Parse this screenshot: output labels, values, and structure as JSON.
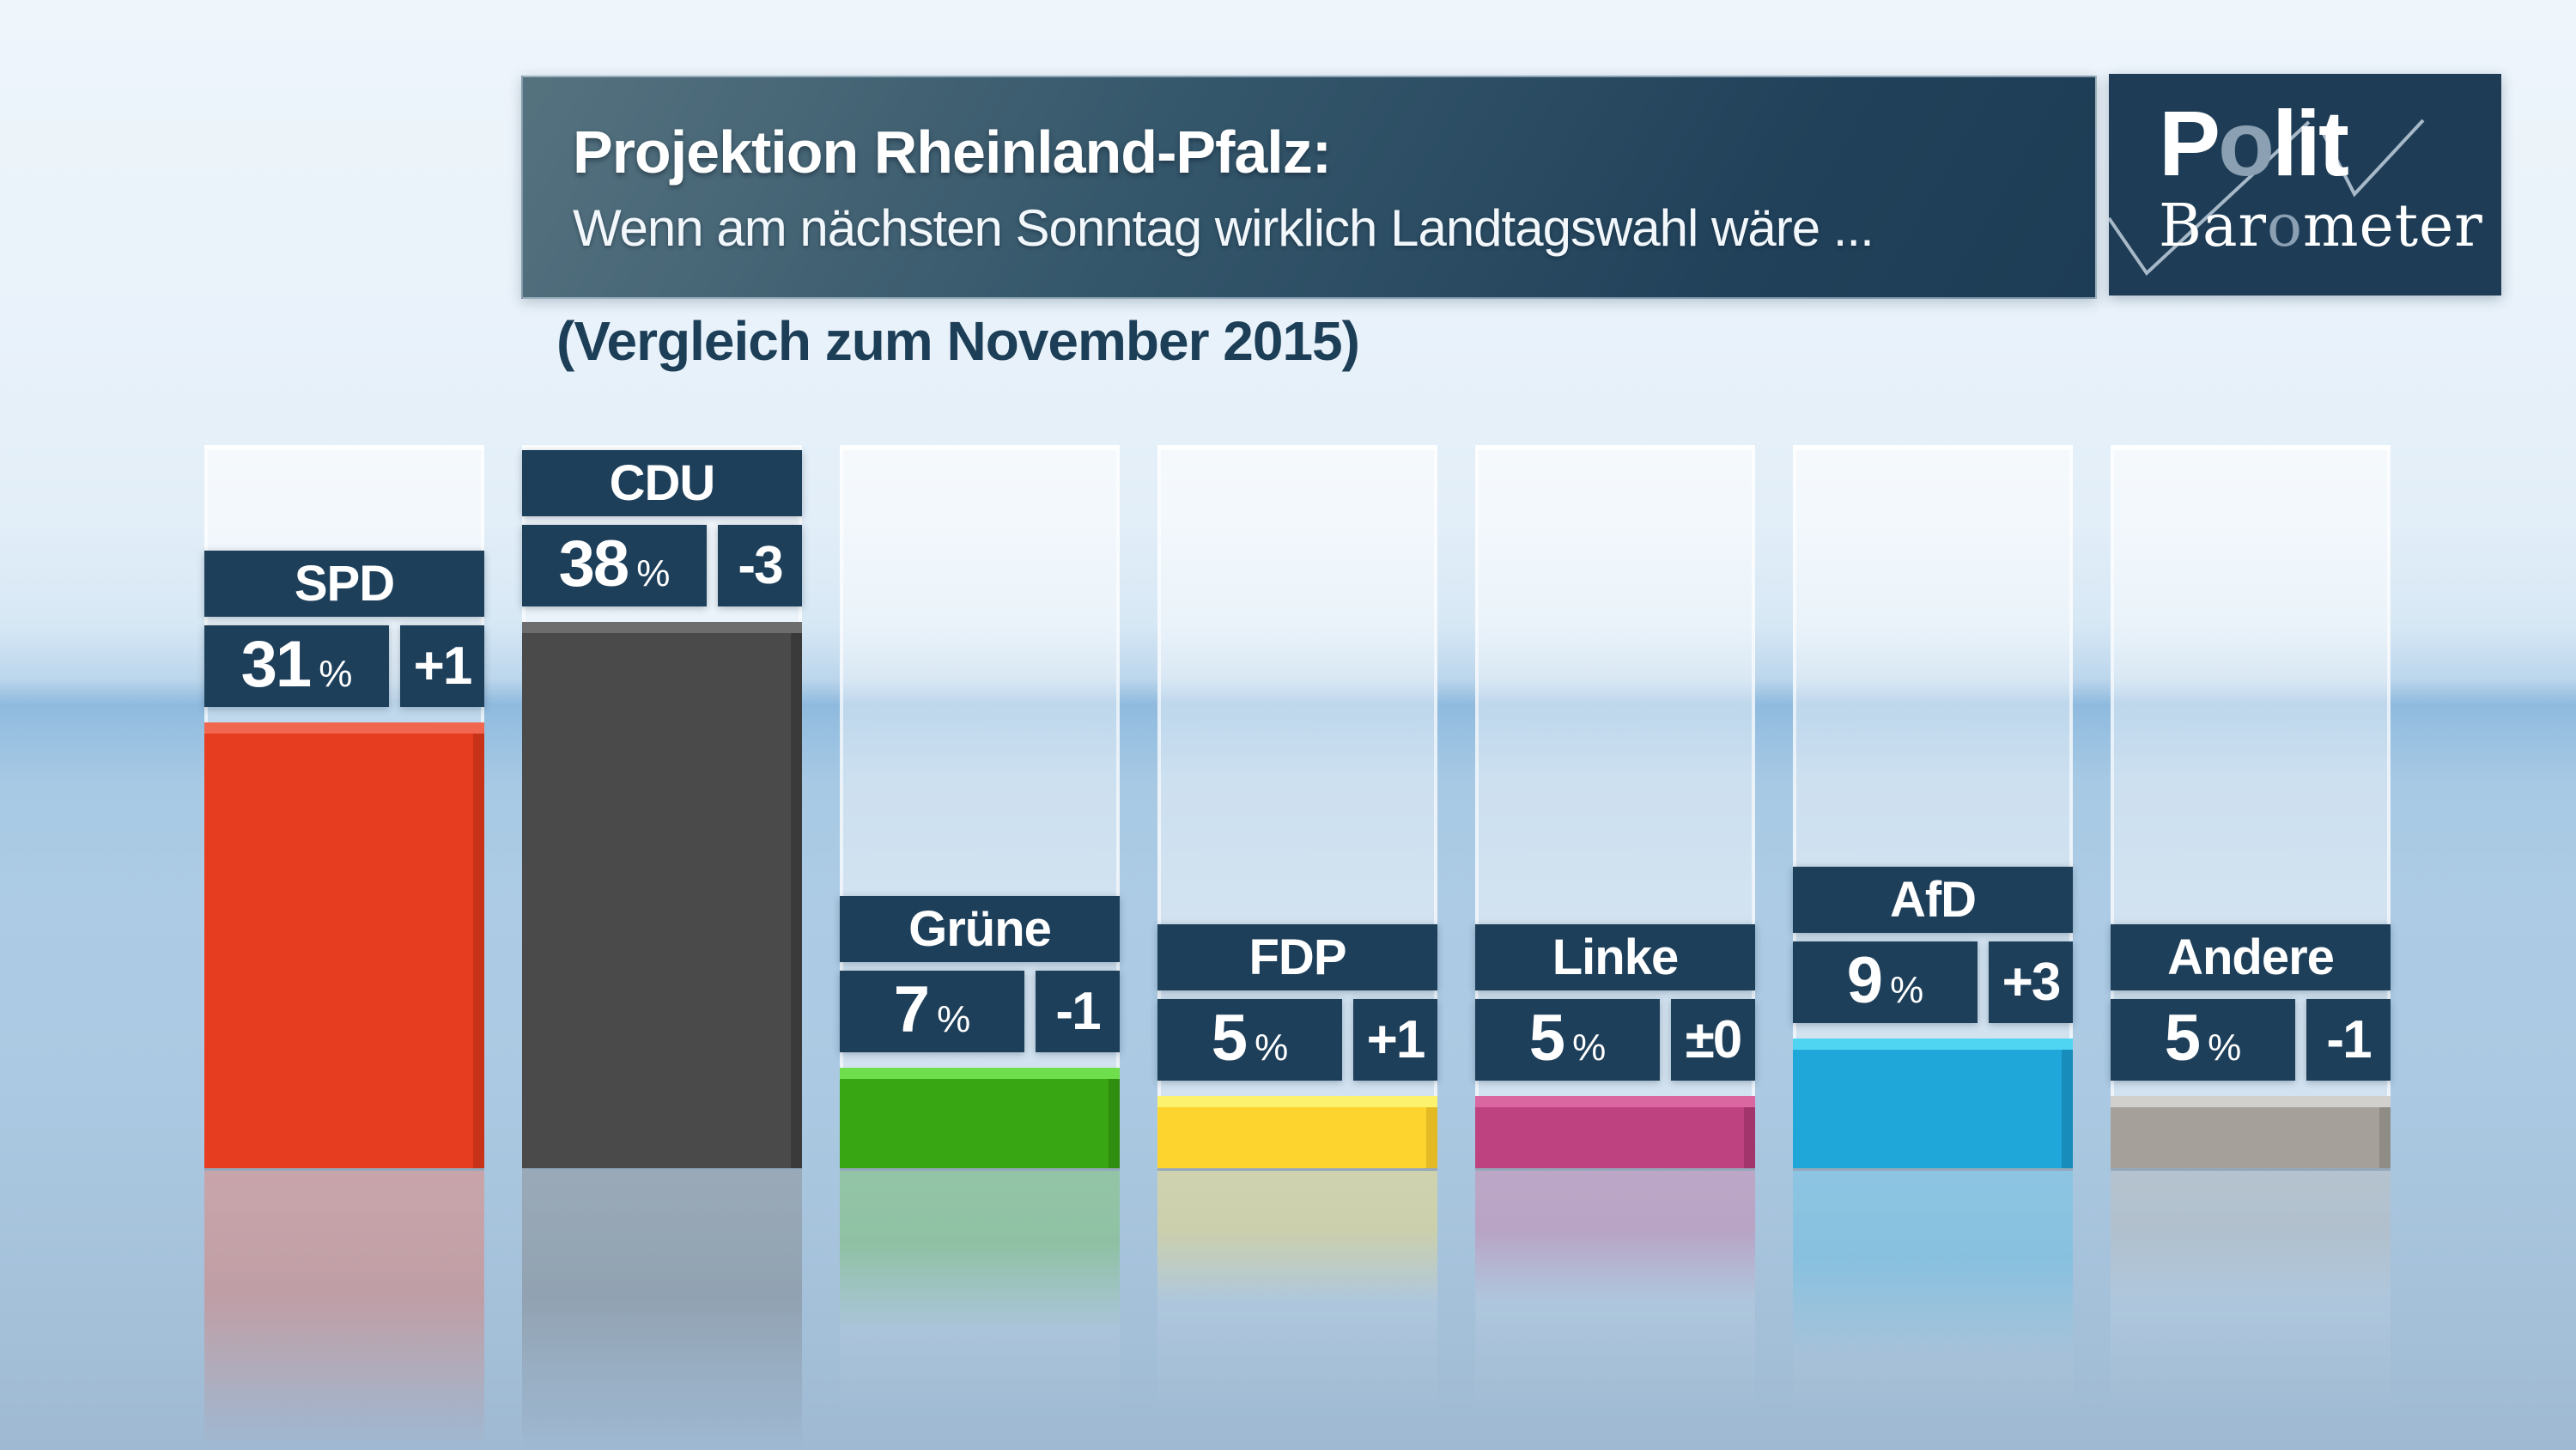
{
  "header": {
    "title_line1": "Projektion Rheinland-Pfalz:",
    "title_line2": "Wenn am nächsten Sonntag wirklich Landtagswahl wäre ...",
    "logo": {
      "p1": "P",
      "o1": "o",
      "p2": "lit",
      "b1": "Bar",
      "o2": "o",
      "b2": "meter"
    }
  },
  "subtitle": "(Vergleich zum November 2015)",
  "chart_data": {
    "type": "bar",
    "title": "Projektion Rheinland-Pfalz: Wenn am nächsten Sonntag wirklich Landtagswahl wäre ...",
    "subtitle": "(Vergleich zum November 2015)",
    "categories": [
      "SPD",
      "CDU",
      "Grüne",
      "FDP",
      "Linke",
      "AfD",
      "Andere"
    ],
    "series": [
      {
        "name": "Projektion (%)",
        "values": [
          31,
          38,
          7,
          5,
          5,
          9,
          5
        ]
      },
      {
        "name": "Veränderung zum November 2015",
        "values": [
          "+1",
          "-3",
          "-1",
          "+1",
          "±0",
          "+3",
          "-1"
        ]
      }
    ],
    "unit": "%",
    "ylim": [
      0,
      50
    ],
    "grid": false,
    "legend": "none",
    "bar_colors": [
      "#e63c20",
      "#4b4a4a",
      "#38a513",
      "#fdd32e",
      "#bf4280",
      "#1fa7da",
      "#a5a09a"
    ],
    "label_box_color": "#1e3f5a"
  },
  "parties": [
    {
      "name": "SPD",
      "value": "31",
      "unit": "%",
      "change": "+1",
      "pct": 31,
      "color": "#e63c20",
      "bevel": "#f0664e",
      "side": "#c43118"
    },
    {
      "name": "CDU",
      "value": "38",
      "unit": "%",
      "change": "-3",
      "pct": 38,
      "color": "#4b4a4a",
      "bevel": "#6e6d6d",
      "side": "#3a3939"
    },
    {
      "name": "Grüne",
      "value": "7",
      "unit": "%",
      "change": "-1",
      "pct": 7,
      "color": "#38a513",
      "bevel": "#6ede4d",
      "side": "#2f8c10"
    },
    {
      "name": "FDP",
      "value": "5",
      "unit": "%",
      "change": "+1",
      "pct": 5,
      "color": "#fdd32e",
      "bevel": "#fdf26e",
      "side": "#e0b722"
    },
    {
      "name": "Linke",
      "value": "5",
      "unit": "%",
      "change": "±0",
      "pct": 5,
      "color": "#bf4280",
      "bevel": "#da67a0",
      "side": "#9e3468"
    },
    {
      "name": "AfD",
      "value": "9",
      "unit": "%",
      "change": "+3",
      "pct": 9,
      "color": "#1fa7da",
      "bevel": "#4fd5f2",
      "side": "#178bb8"
    },
    {
      "name": "Andere",
      "value": "5",
      "unit": "%",
      "change": "-1",
      "pct": 5,
      "color": "#a5a09a",
      "bevel": "#d2d0cd",
      "side": "#8d8983"
    }
  ]
}
